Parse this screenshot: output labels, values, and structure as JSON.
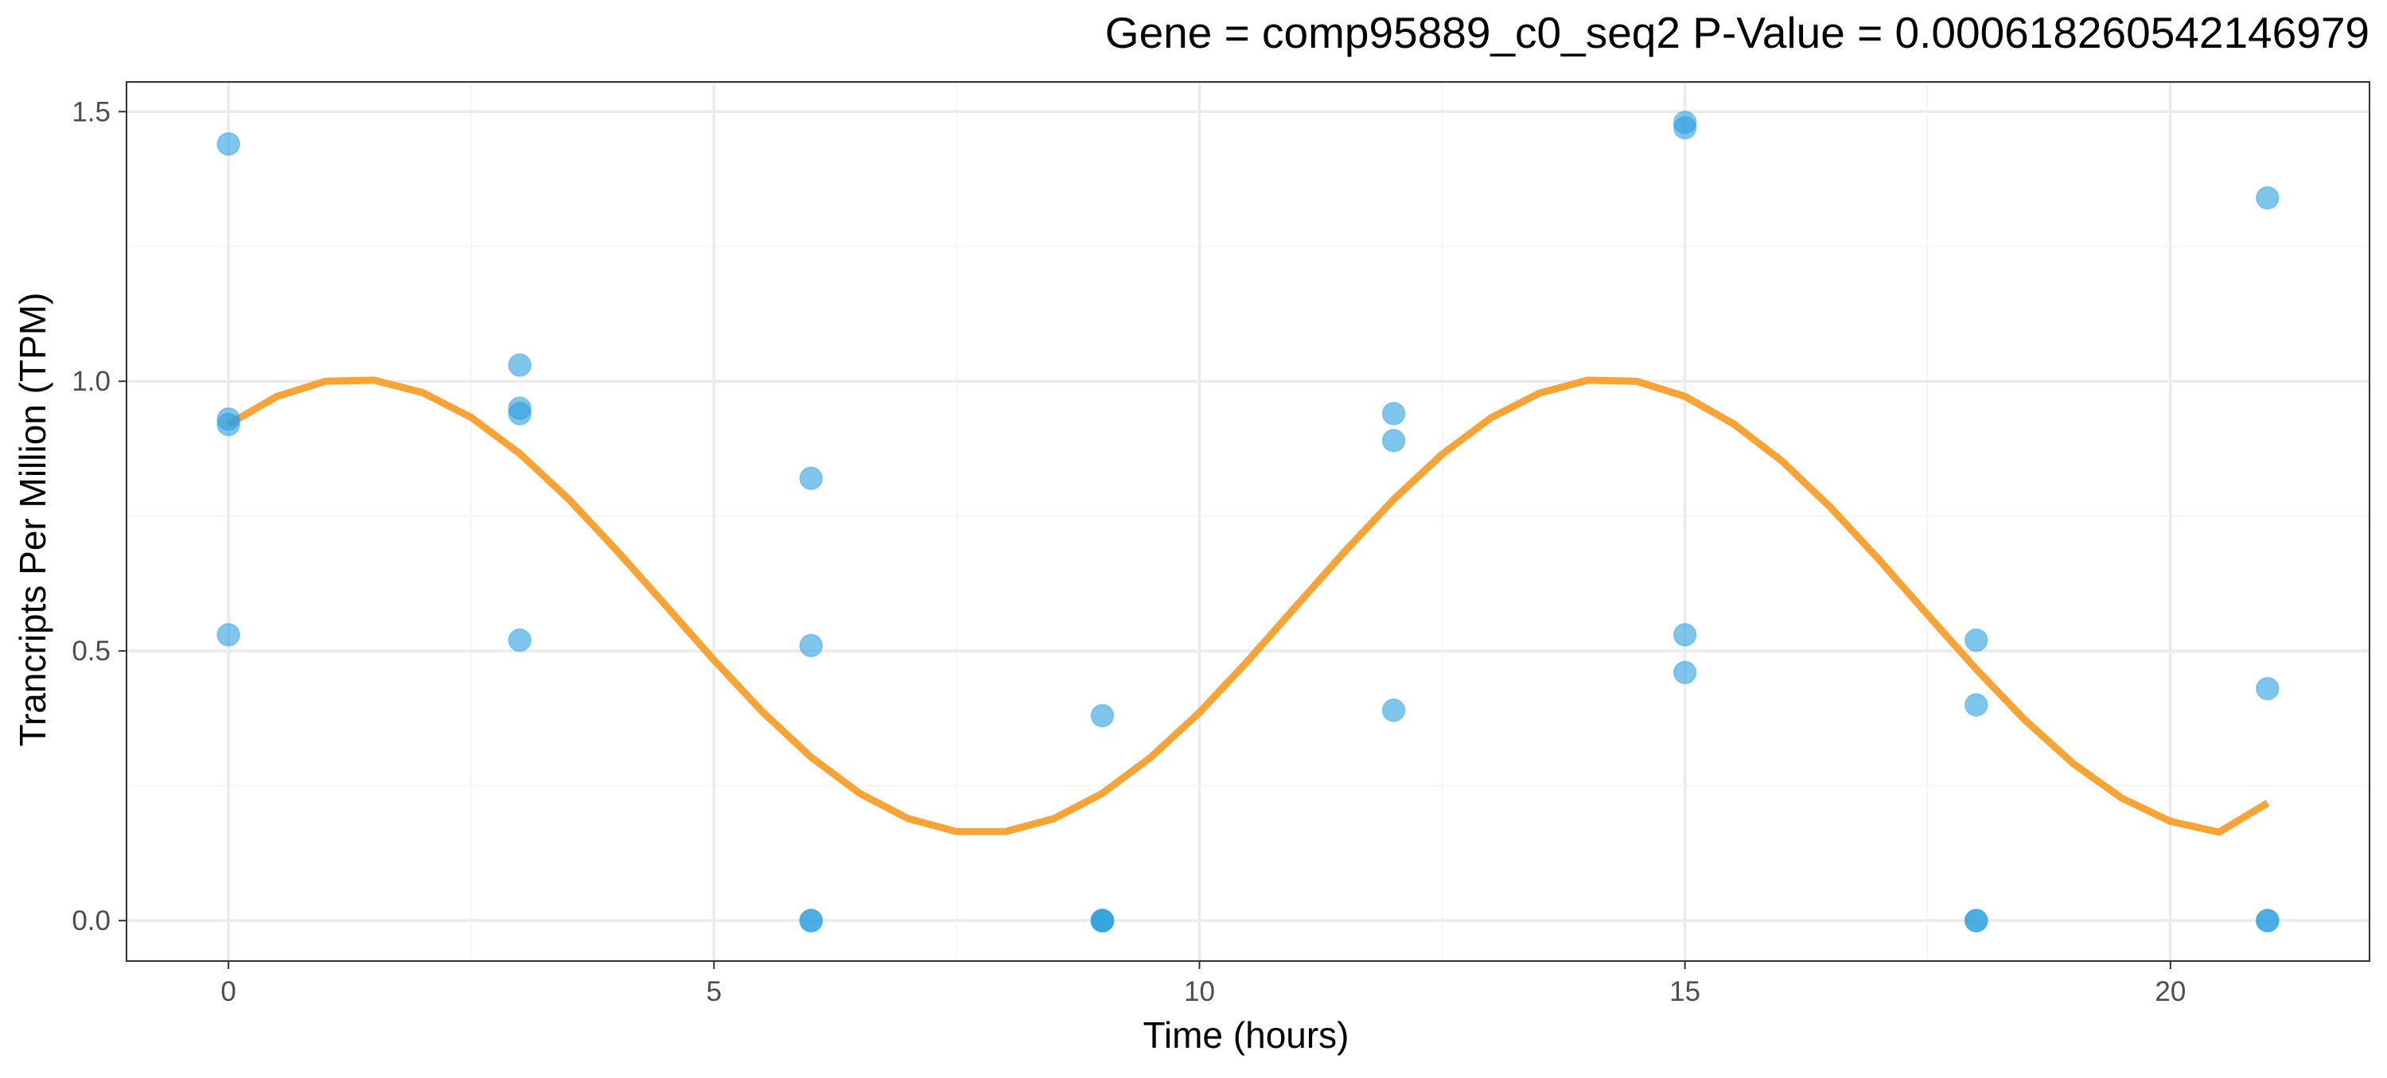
{
  "chart_data": {
    "type": "scatter",
    "title": "Gene =  comp95889_c0_seq2  P-Value =  0.000618260542146979",
    "xlabel": "Time (hours)",
    "ylabel": "Trancripts Per Million (TPM)",
    "xlim": [
      -1.05,
      22.05
    ],
    "ylim": [
      -0.075,
      1.555
    ],
    "x_ticks": [
      0,
      5,
      10,
      15,
      20
    ],
    "x_tick_labels": [
      "0",
      "5",
      "10",
      "15",
      "20"
    ],
    "y_ticks": [
      0.0,
      0.5,
      1.0,
      1.5
    ],
    "y_tick_labels": [
      "0.0",
      "0.5",
      "1.0",
      "1.5"
    ],
    "grid": true,
    "points": [
      {
        "x": 0,
        "y": 1.44
      },
      {
        "x": 0,
        "y": 0.93
      },
      {
        "x": 0,
        "y": 0.92
      },
      {
        "x": 0,
        "y": 0.53
      },
      {
        "x": 3,
        "y": 1.03
      },
      {
        "x": 3,
        "y": 0.95
      },
      {
        "x": 3,
        "y": 0.94
      },
      {
        "x": 3,
        "y": 0.52
      },
      {
        "x": 6,
        "y": 0.82
      },
      {
        "x": 6,
        "y": 0.51
      },
      {
        "x": 6,
        "y": 0.0
      },
      {
        "x": 6,
        "y": 0.0
      },
      {
        "x": 9,
        "y": 0.38
      },
      {
        "x": 9,
        "y": 0.0
      },
      {
        "x": 9,
        "y": 0.0
      },
      {
        "x": 9,
        "y": 0.0
      },
      {
        "x": 12,
        "y": 0.94
      },
      {
        "x": 12,
        "y": 0.89
      },
      {
        "x": 12,
        "y": 0.39
      },
      {
        "x": 15,
        "y": 1.48
      },
      {
        "x": 15,
        "y": 1.47
      },
      {
        "x": 15,
        "y": 0.53
      },
      {
        "x": 15,
        "y": 0.46
      },
      {
        "x": 18,
        "y": 0.52
      },
      {
        "x": 18,
        "y": 0.4
      },
      {
        "x": 18,
        "y": 0.0
      },
      {
        "x": 18,
        "y": 0.0
      },
      {
        "x": 21,
        "y": 1.34
      },
      {
        "x": 21,
        "y": 0.43
      },
      {
        "x": 21,
        "y": 0.0
      },
      {
        "x": 21,
        "y": 0.0
      }
    ],
    "fit_curve": {
      "x": [
        0,
        0.5,
        1,
        1.5,
        2,
        2.5,
        3,
        3.5,
        4,
        4.5,
        5,
        5.5,
        6,
        6.5,
        7,
        7.5,
        8,
        8.5,
        9,
        9.5,
        10,
        10.5,
        11,
        11.5,
        12,
        12.5,
        13,
        13.5,
        14,
        14.5,
        15,
        15.5,
        16,
        16.5,
        17,
        17.5,
        18,
        18.5,
        19,
        19.5,
        20,
        20.5,
        21
      ],
      "y": [
        0.92,
        0.972,
        1.0,
        1.002,
        0.979,
        0.933,
        0.866,
        0.782,
        0.686,
        0.585,
        0.483,
        0.387,
        0.303,
        0.236,
        0.189,
        0.165,
        0.165,
        0.189,
        0.236,
        0.303,
        0.386,
        0.482,
        0.584,
        0.685,
        0.781,
        0.865,
        0.932,
        0.978,
        1.002,
        1.0,
        0.972,
        0.921,
        0.852,
        0.766,
        0.669,
        0.567,
        0.466,
        0.372,
        0.291,
        0.227,
        0.184,
        0.164,
        0.218
      ]
    },
    "colors": {
      "points": "#2b9fdf",
      "fit_line": "#f8a335",
      "grid_major": "#ebebeb",
      "grid_minor": "#f5f5f5",
      "panel_border": "#333333"
    }
  }
}
